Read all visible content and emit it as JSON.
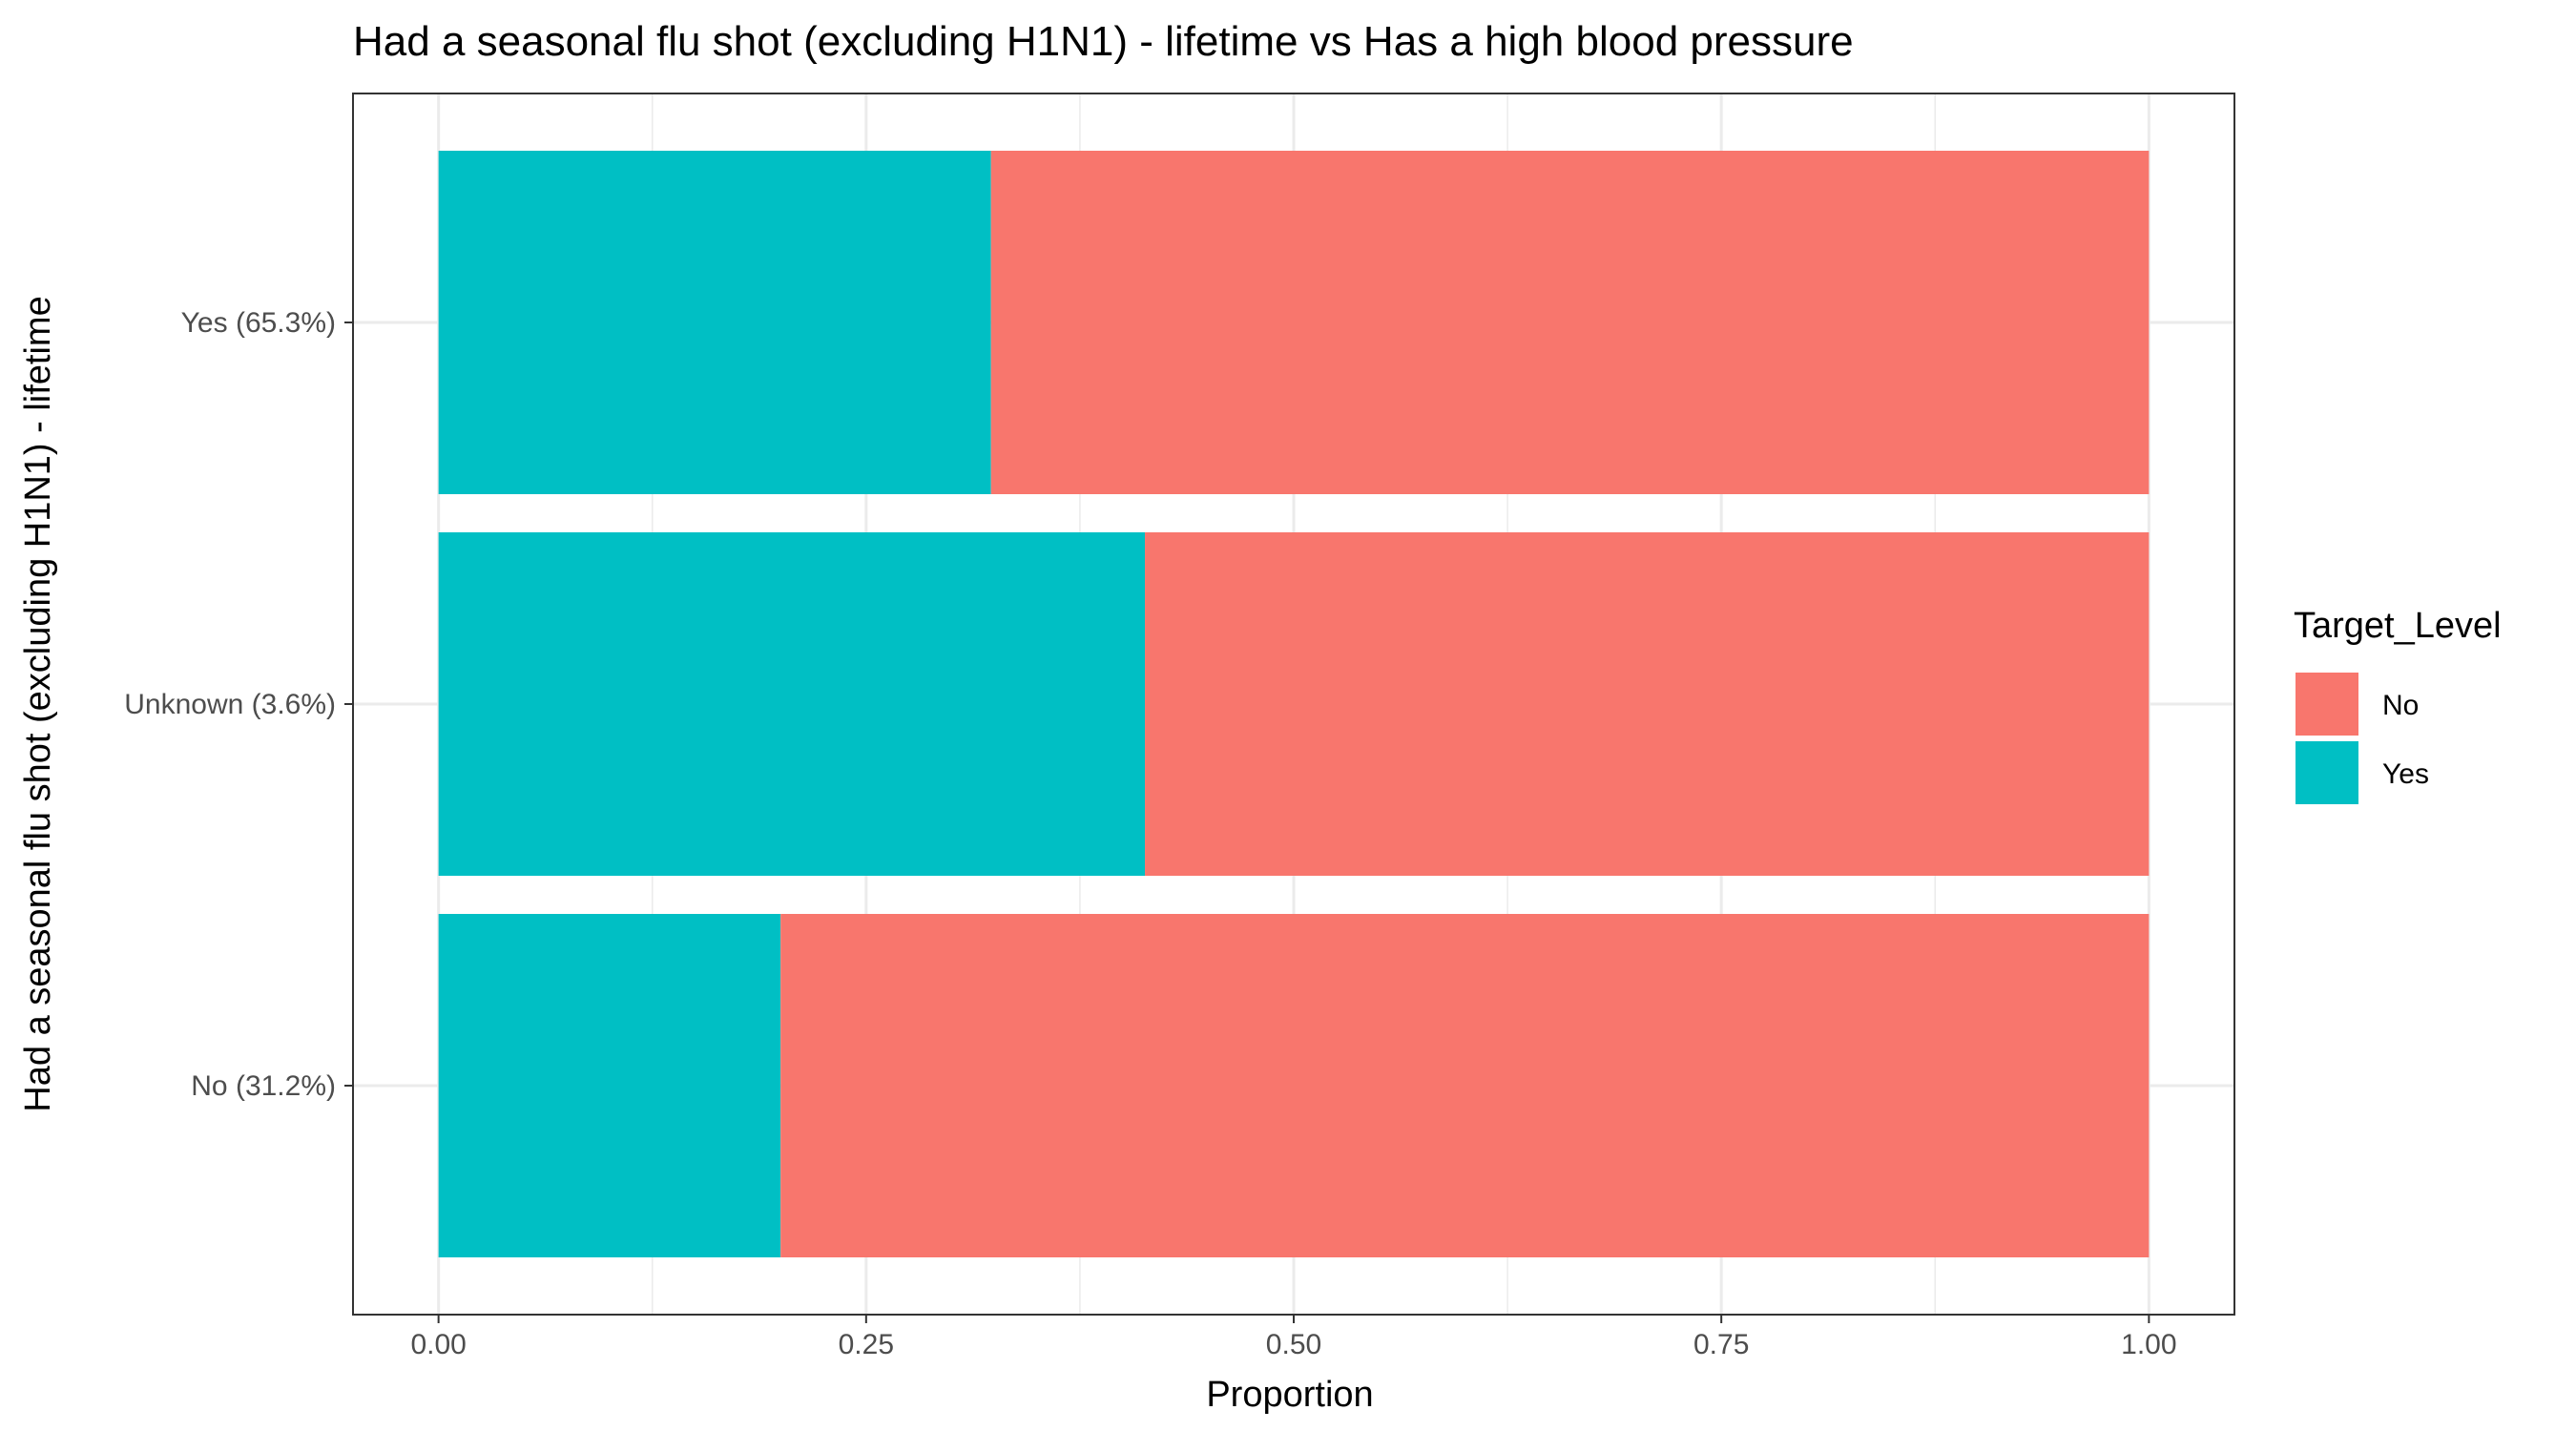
{
  "chart_data": {
    "type": "bar",
    "orientation": "horizontal",
    "stacked": true,
    "title": "Had a seasonal flu shot (excluding H1N1) - lifetime vs Has a high blood pressure",
    "xlabel": "Proportion",
    "ylabel": "Had a seasonal flu shot (excluding H1N1) - lifetime",
    "categories": [
      "No (31.2%)",
      "Unknown (3.6%)",
      "Yes (65.3%)"
    ],
    "series": [
      {
        "name": "Yes",
        "color": "#00BFC4",
        "values": [
          0.2,
          0.413,
          0.323
        ]
      },
      {
        "name": "No",
        "color": "#F8766D",
        "values": [
          0.8,
          0.587,
          0.677
        ]
      }
    ],
    "xlim": [
      -0.05,
      1.05
    ],
    "x_ticks": [
      0.0,
      0.25,
      0.5,
      0.75,
      1.0
    ],
    "x_tick_labels": [
      "0.00",
      "0.25",
      "0.50",
      "0.75",
      "1.00"
    ],
    "grid": true,
    "legend": {
      "title": "Target_Level",
      "position": "right",
      "entries": [
        {
          "label": "No",
          "color": "#F8766D"
        },
        {
          "label": "Yes",
          "color": "#00BFC4"
        }
      ]
    }
  }
}
